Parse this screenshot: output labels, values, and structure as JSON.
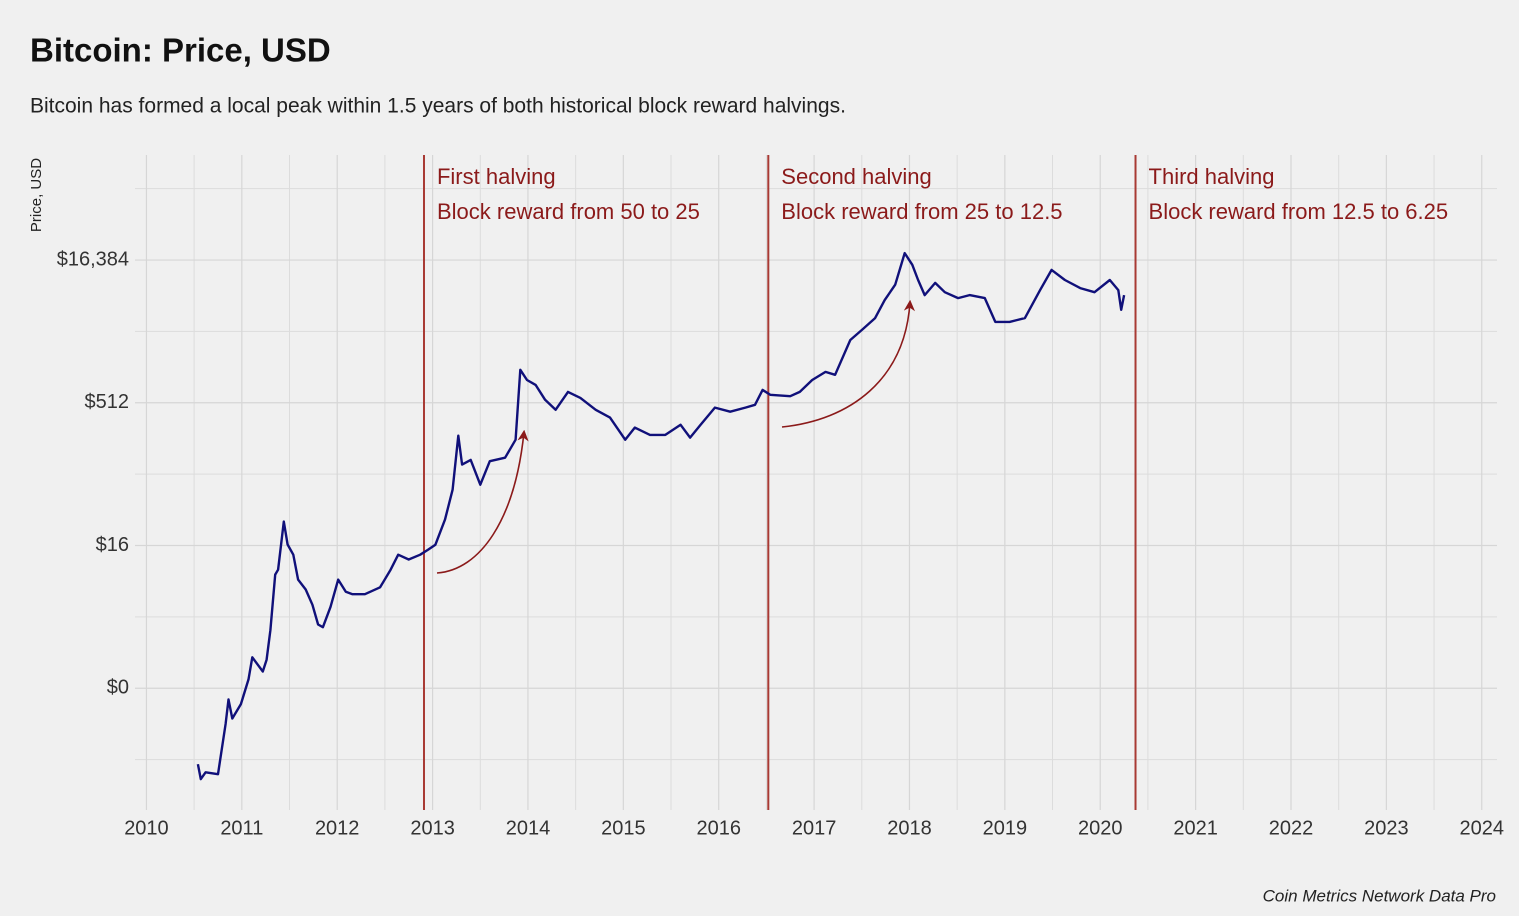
{
  "chart_data": {
    "type": "line",
    "title": "Bitcoin: Price, USD",
    "subtitle": "Bitcoin has formed a local peak within 1.5 years of both historical block reward halvings.",
    "y_label": "Price, USD",
    "source": "Coin Metrics Network Data Pro",
    "color": "#10107a",
    "log_scale": true,
    "grid": true,
    "minor_grid": true,
    "xlim": [
      2009.88,
      2024.16
    ],
    "xticks": [
      2010,
      2011,
      2012,
      2013,
      2014,
      2015,
      2016,
      2017,
      2018,
      2019,
      2020,
      2021,
      2022,
      2023,
      2024
    ],
    "ylim": [
      0.026,
      210000
    ],
    "yticks": [
      {
        "value": 0.5,
        "label": "$0"
      },
      {
        "value": 16,
        "label": "$16"
      },
      {
        "value": 512,
        "label": "$512"
      },
      {
        "value": 16384,
        "label": "$16,384"
      }
    ],
    "x": [
      2010.54,
      2010.57,
      2010.62,
      2010.75,
      2010.83,
      2010.86,
      2010.9,
      2010.99,
      2011.07,
      2011.11,
      2011.22,
      2011.26,
      2011.3,
      2011.35,
      2011.38,
      2011.44,
      2011.48,
      2011.54,
      2011.59,
      2011.67,
      2011.74,
      2011.8,
      2011.85,
      2011.93,
      2012.01,
      2012.09,
      2012.16,
      2012.29,
      2012.45,
      2012.56,
      2012.64,
      2012.75,
      2012.87,
      2012.95,
      2013.03,
      2013.13,
      2013.21,
      2013.27,
      2013.31,
      2013.4,
      2013.5,
      2013.6,
      2013.76,
      2013.87,
      2013.92,
      2013.99,
      2014.08,
      2014.18,
      2014.29,
      2014.42,
      2014.55,
      2014.71,
      2014.86,
      2015.02,
      2015.12,
      2015.28,
      2015.44,
      2015.6,
      2015.7,
      2015.81,
      2015.96,
      2016.12,
      2016.28,
      2016.38,
      2016.46,
      2016.54,
      2016.75,
      2016.85,
      2016.98,
      2017.12,
      2017.22,
      2017.38,
      2017.5,
      2017.64,
      2017.74,
      2017.85,
      2017.95,
      2018.03,
      2018.09,
      2018.16,
      2018.27,
      2018.37,
      2018.51,
      2018.63,
      2018.79,
      2018.9,
      2019.05,
      2019.21,
      2019.37,
      2019.49,
      2019.63,
      2019.79,
      2019.94,
      2020.1,
      2020.19,
      2020.22,
      2020.25
    ],
    "values": [
      0.079,
      0.055,
      0.065,
      0.062,
      0.21,
      0.38,
      0.24,
      0.34,
      0.62,
      1.06,
      0.75,
      1.0,
      2.05,
      7.9,
      8.9,
      28.6,
      16.4,
      12.8,
      7.0,
      5.5,
      3.8,
      2.35,
      2.2,
      3.6,
      7.0,
      5.2,
      4.9,
      4.9,
      5.8,
      8.9,
      12.8,
      11.4,
      12.8,
      14.4,
      16.3,
      30,
      62,
      230,
      114,
      128,
      70,
      124,
      135,
      209,
      1140,
      890,
      790,
      550,
      432,
      667,
      577,
      432,
      357,
      209,
      280,
      235,
      235,
      300,
      220,
      300,
      455,
      412,
      455,
      488,
      700,
      622,
      600,
      667,
      890,
      1085,
      1010,
      2350,
      3000,
      4000,
      6200,
      9000,
      19400,
      14600,
      10100,
      7000,
      9400,
      7500,
      6500,
      7000,
      6500,
      3650,
      3650,
      4000,
      7900,
      12900,
      10100,
      8300,
      7500,
      10100,
      7900,
      4900,
      7000
    ],
    "annotation_color": "#8b1a1a",
    "annotations": [
      {
        "x": 2012.91,
        "lines": [
          "First halving",
          "Block reward from 50 to 25"
        ]
      },
      {
        "x": 2016.52,
        "lines": [
          "Second halving",
          "Block reward from 25 to 12.5"
        ]
      },
      {
        "x": 2020.37,
        "lines": [
          "Third halving",
          "Block reward from 12.5 to 6.25"
        ]
      }
    ]
  }
}
